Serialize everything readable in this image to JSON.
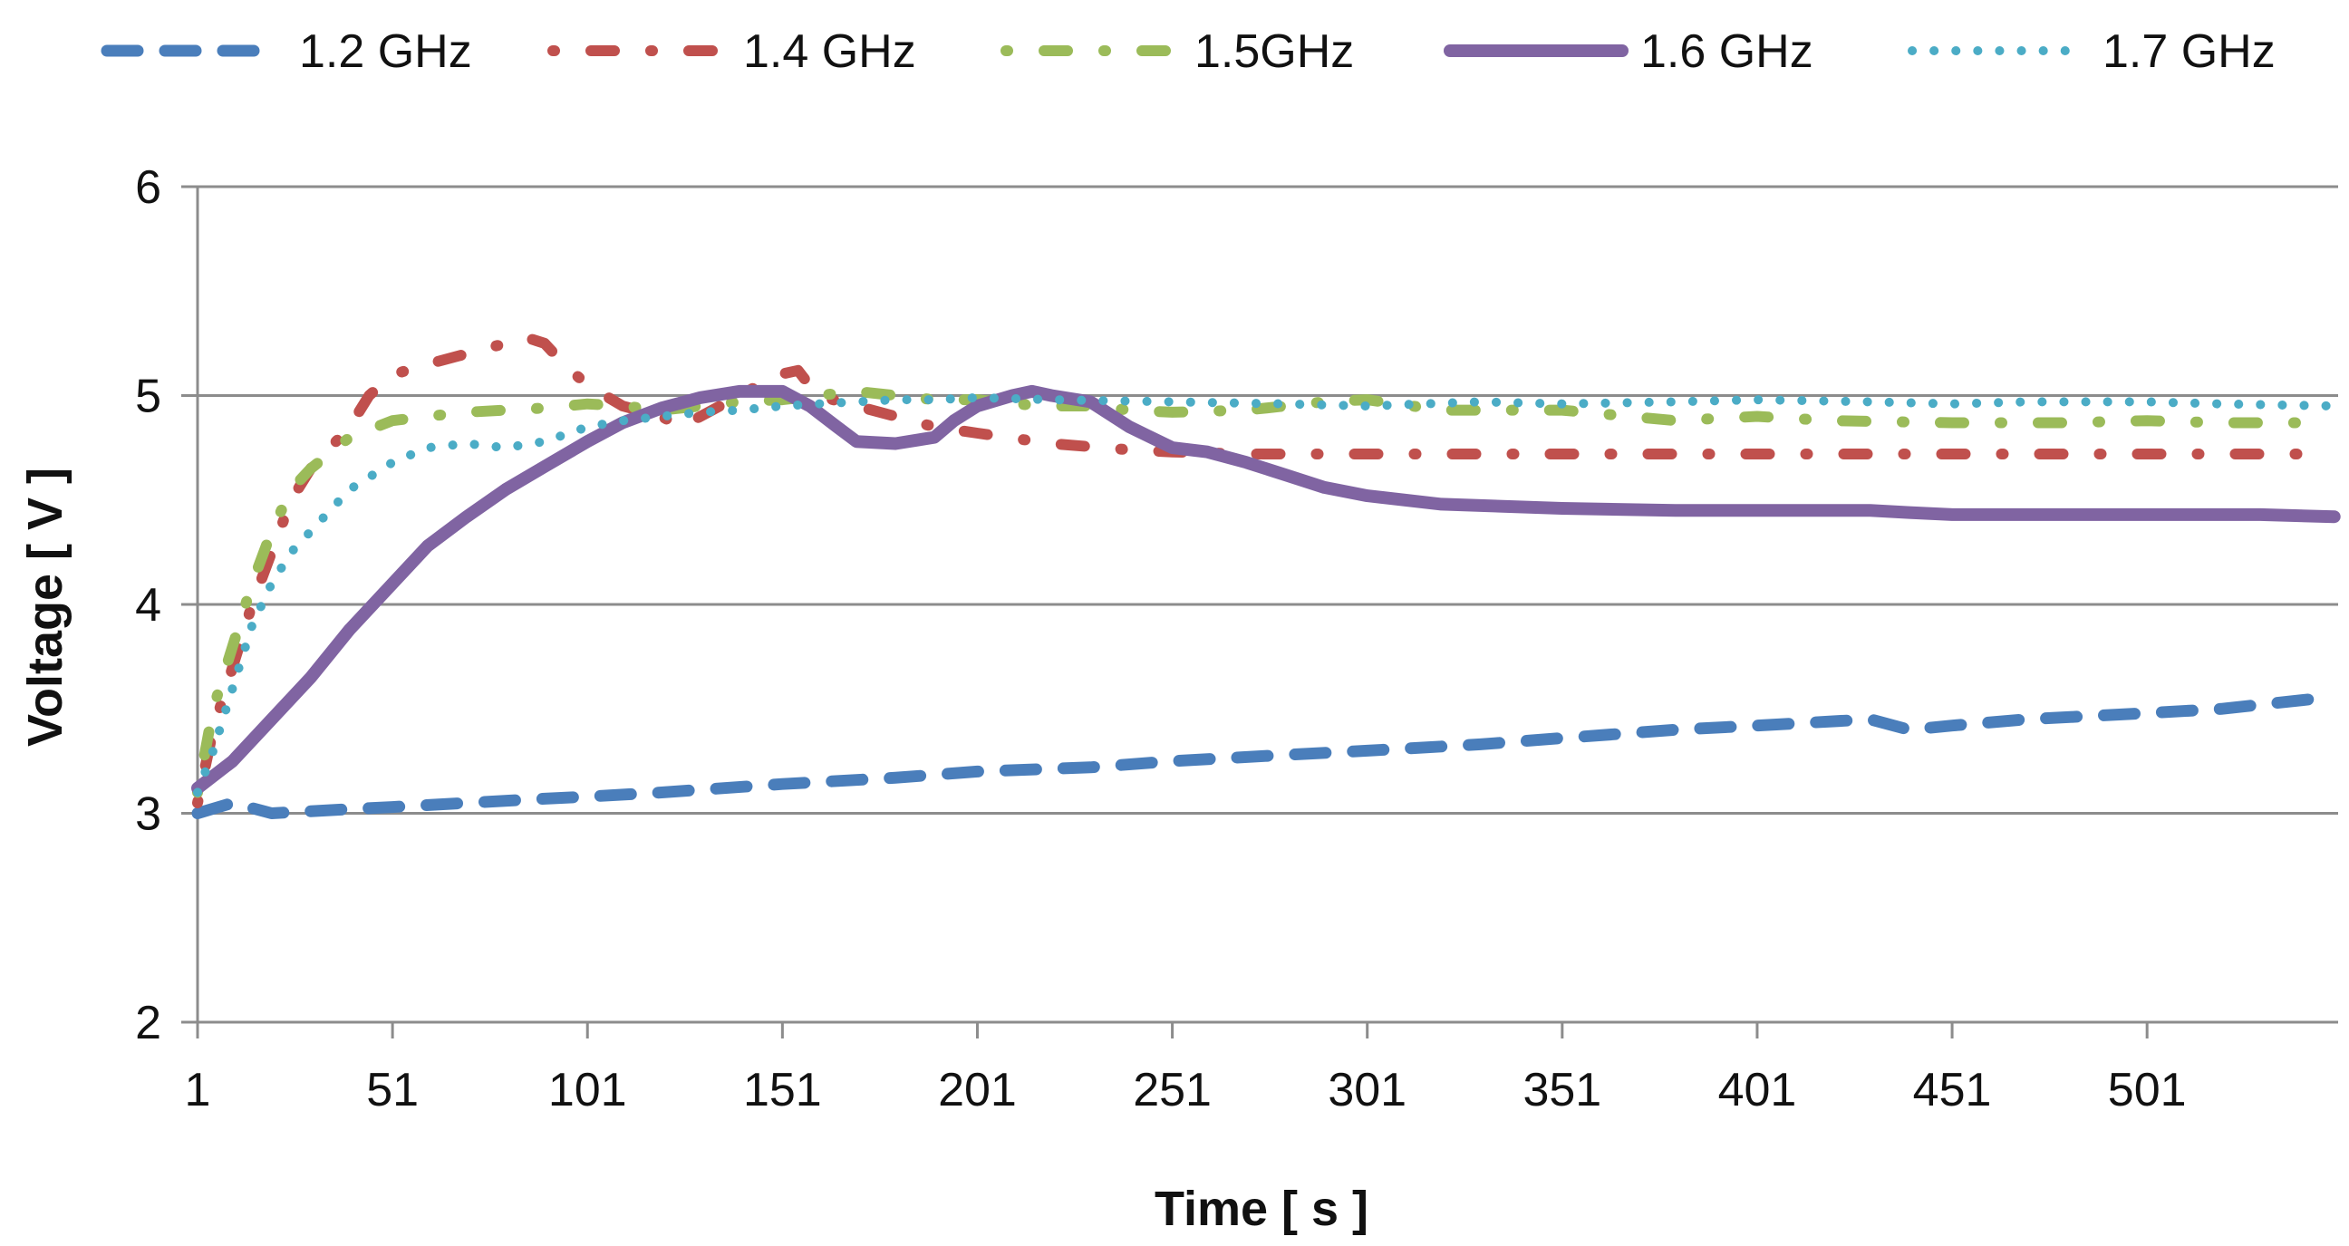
{
  "chart_data": {
    "type": "line",
    "title": "",
    "xlabel": "Time [ s ]",
    "ylabel": "Voltage [ V ]",
    "xlim": [
      1,
      550
    ],
    "ylim": [
      2,
      6
    ],
    "x_ticks": [
      1,
      51,
      101,
      151,
      201,
      251,
      301,
      351,
      401,
      451,
      501
    ],
    "y_ticks": [
      2,
      3,
      4,
      5,
      6
    ],
    "grid": "horizontal",
    "legend_position": "top",
    "series": [
      {
        "name": "1.2 GHz",
        "color": "#4a7ebb",
        "style": "dash",
        "points": [
          [
            1,
            3.0
          ],
          [
            10,
            3.05
          ],
          [
            20,
            3.0
          ],
          [
            30,
            3.01
          ],
          [
            40,
            3.02
          ],
          [
            51,
            3.03
          ],
          [
            70,
            3.05
          ],
          [
            90,
            3.07
          ],
          [
            101,
            3.08
          ],
          [
            120,
            3.1
          ],
          [
            151,
            3.14
          ],
          [
            180,
            3.17
          ],
          [
            201,
            3.2
          ],
          [
            230,
            3.22
          ],
          [
            251,
            3.25
          ],
          [
            280,
            3.28
          ],
          [
            301,
            3.3
          ],
          [
            330,
            3.33
          ],
          [
            351,
            3.36
          ],
          [
            380,
            3.4
          ],
          [
            401,
            3.42
          ],
          [
            420,
            3.44
          ],
          [
            430,
            3.45
          ],
          [
            440,
            3.4
          ],
          [
            451,
            3.42
          ],
          [
            470,
            3.45
          ],
          [
            501,
            3.48
          ],
          [
            520,
            3.5
          ],
          [
            530,
            3.52
          ],
          [
            545,
            3.55
          ]
        ]
      },
      {
        "name": "1.4 GHz",
        "color": "#c0504d",
        "style": "dash-dot",
        "points": [
          [
            1,
            3.05
          ],
          [
            5,
            3.4
          ],
          [
            10,
            3.7
          ],
          [
            15,
            4.0
          ],
          [
            20,
            4.25
          ],
          [
            25,
            4.5
          ],
          [
            30,
            4.65
          ],
          [
            40,
            4.85
          ],
          [
            45,
            5.0
          ],
          [
            51,
            5.1
          ],
          [
            60,
            5.15
          ],
          [
            70,
            5.2
          ],
          [
            80,
            5.25
          ],
          [
            85,
            5.28
          ],
          [
            90,
            5.25
          ],
          [
            95,
            5.15
          ],
          [
            101,
            5.05
          ],
          [
            110,
            4.95
          ],
          [
            120,
            4.9
          ],
          [
            125,
            4.85
          ],
          [
            130,
            4.9
          ],
          [
            140,
            5.0
          ],
          [
            150,
            5.1
          ],
          [
            155,
            5.12
          ],
          [
            160,
            5.0
          ],
          [
            170,
            4.95
          ],
          [
            180,
            4.9
          ],
          [
            190,
            4.85
          ],
          [
            201,
            4.82
          ],
          [
            220,
            4.77
          ],
          [
            240,
            4.74
          ],
          [
            251,
            4.73
          ],
          [
            270,
            4.72
          ],
          [
            301,
            4.72
          ],
          [
            330,
            4.72
          ],
          [
            351,
            4.72
          ],
          [
            380,
            4.72
          ],
          [
            401,
            4.72
          ],
          [
            430,
            4.72
          ],
          [
            451,
            4.72
          ],
          [
            480,
            4.72
          ],
          [
            501,
            4.72
          ],
          [
            530,
            4.72
          ],
          [
            545,
            4.72
          ]
        ]
      },
      {
        "name": "1.5GHz",
        "color": "#9bbb59",
        "style": "dash-dot",
        "points": [
          [
            1,
            3.1
          ],
          [
            5,
            3.5
          ],
          [
            10,
            3.8
          ],
          [
            15,
            4.1
          ],
          [
            20,
            4.35
          ],
          [
            25,
            4.55
          ],
          [
            30,
            4.65
          ],
          [
            40,
            4.8
          ],
          [
            51,
            4.88
          ],
          [
            60,
            4.9
          ],
          [
            70,
            4.92
          ],
          [
            80,
            4.93
          ],
          [
            90,
            4.94
          ],
          [
            101,
            4.96
          ],
          [
            110,
            4.95
          ],
          [
            120,
            4.93
          ],
          [
            130,
            4.95
          ],
          [
            140,
            4.97
          ],
          [
            151,
            4.98
          ],
          [
            160,
            5.0
          ],
          [
            170,
            5.02
          ],
          [
            180,
            5.0
          ],
          [
            190,
            4.98
          ],
          [
            201,
            4.98
          ],
          [
            210,
            4.96
          ],
          [
            220,
            4.95
          ],
          [
            230,
            4.95
          ],
          [
            240,
            4.93
          ],
          [
            251,
            4.92
          ],
          [
            270,
            4.93
          ],
          [
            280,
            4.95
          ],
          [
            290,
            4.97
          ],
          [
            301,
            4.98
          ],
          [
            320,
            4.93
          ],
          [
            351,
            4.93
          ],
          [
            380,
            4.88
          ],
          [
            401,
            4.9
          ],
          [
            420,
            4.88
          ],
          [
            451,
            4.87
          ],
          [
            480,
            4.87
          ],
          [
            501,
            4.88
          ],
          [
            520,
            4.87
          ],
          [
            545,
            4.87
          ]
        ]
      },
      {
        "name": "1.6 GHz",
        "color": "#8064a2",
        "style": "solid",
        "points": [
          [
            1,
            3.12
          ],
          [
            10,
            3.25
          ],
          [
            20,
            3.45
          ],
          [
            30,
            3.65
          ],
          [
            40,
            3.88
          ],
          [
            51,
            4.1
          ],
          [
            60,
            4.28
          ],
          [
            70,
            4.42
          ],
          [
            80,
            4.55
          ],
          [
            90,
            4.66
          ],
          [
            101,
            4.78
          ],
          [
            110,
            4.87
          ],
          [
            120,
            4.94
          ],
          [
            130,
            4.99
          ],
          [
            140,
            5.02
          ],
          [
            151,
            5.02
          ],
          [
            158,
            4.95
          ],
          [
            165,
            4.85
          ],
          [
            170,
            4.78
          ],
          [
            180,
            4.77
          ],
          [
            190,
            4.8
          ],
          [
            195,
            4.88
          ],
          [
            201,
            4.95
          ],
          [
            210,
            5.0
          ],
          [
            215,
            5.02
          ],
          [
            220,
            5.0
          ],
          [
            230,
            4.97
          ],
          [
            240,
            4.85
          ],
          [
            251,
            4.75
          ],
          [
            260,
            4.73
          ],
          [
            270,
            4.68
          ],
          [
            280,
            4.62
          ],
          [
            290,
            4.56
          ],
          [
            301,
            4.52
          ],
          [
            320,
            4.48
          ],
          [
            351,
            4.46
          ],
          [
            380,
            4.45
          ],
          [
            401,
            4.45
          ],
          [
            430,
            4.45
          ],
          [
            440,
            4.44
          ],
          [
            451,
            4.43
          ],
          [
            480,
            4.43
          ],
          [
            501,
            4.43
          ],
          [
            530,
            4.43
          ],
          [
            549,
            4.42
          ]
        ]
      },
      {
        "name": "1.7 GHz",
        "color": "#4bacc6",
        "style": "dot",
        "points": [
          [
            1,
            3.1
          ],
          [
            5,
            3.3
          ],
          [
            10,
            3.6
          ],
          [
            15,
            3.9
          ],
          [
            20,
            4.1
          ],
          [
            25,
            4.25
          ],
          [
            30,
            4.35
          ],
          [
            40,
            4.55
          ],
          [
            51,
            4.68
          ],
          [
            60,
            4.75
          ],
          [
            70,
            4.77
          ],
          [
            80,
            4.75
          ],
          [
            90,
            4.78
          ],
          [
            101,
            4.85
          ],
          [
            110,
            4.88
          ],
          [
            120,
            4.9
          ],
          [
            130,
            4.92
          ],
          [
            140,
            4.93
          ],
          [
            151,
            4.95
          ],
          [
            160,
            4.96
          ],
          [
            170,
            4.97
          ],
          [
            180,
            4.98
          ],
          [
            190,
            4.98
          ],
          [
            201,
            4.99
          ],
          [
            220,
            4.98
          ],
          [
            251,
            4.97
          ],
          [
            280,
            4.96
          ],
          [
            301,
            4.95
          ],
          [
            330,
            4.97
          ],
          [
            351,
            4.96
          ],
          [
            380,
            4.97
          ],
          [
            401,
            4.98
          ],
          [
            430,
            4.97
          ],
          [
            451,
            4.96
          ],
          [
            470,
            4.97
          ],
          [
            501,
            4.97
          ],
          [
            520,
            4.96
          ],
          [
            549,
            4.95
          ]
        ]
      }
    ]
  }
}
